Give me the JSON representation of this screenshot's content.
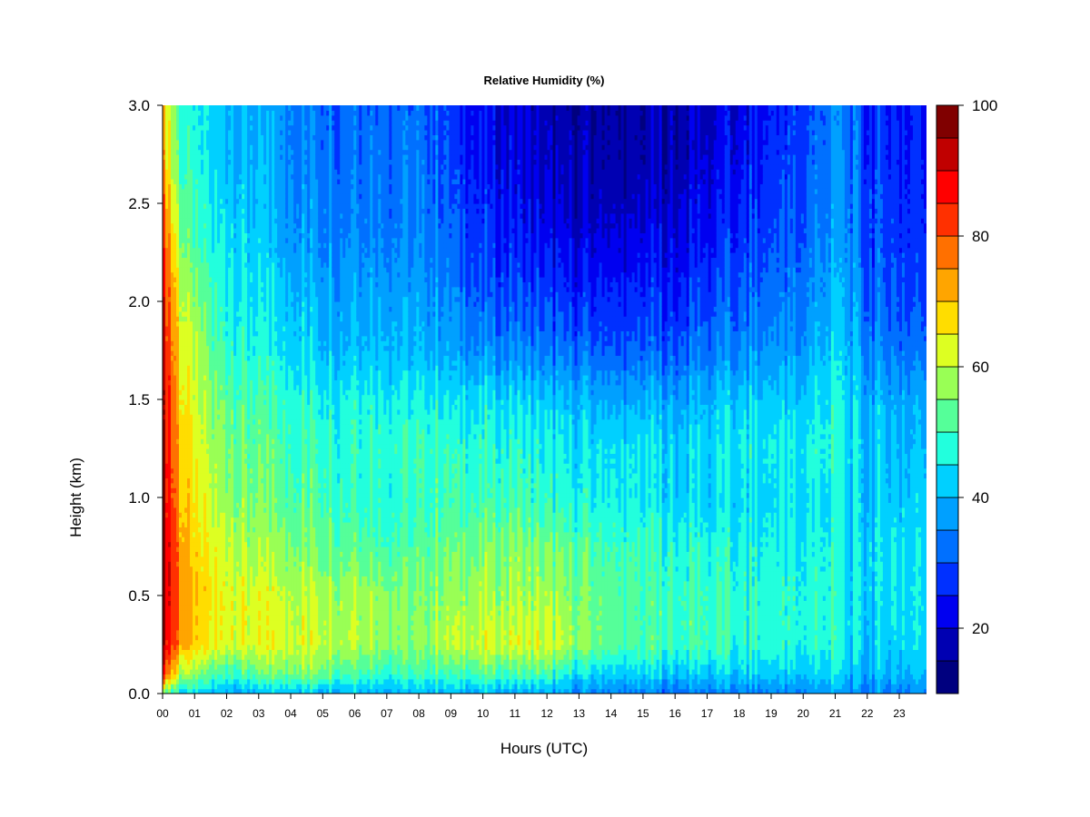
{
  "chart_data": {
    "type": "heatmap",
    "title": "Relative Humidity (%)",
    "xlabel": "Hours (UTC)",
    "ylabel": "Height (km)",
    "xlim": [
      0,
      23.85
    ],
    "ylim": [
      0,
      3.0
    ],
    "x_ticks": [
      "00",
      "01",
      "02",
      "03",
      "04",
      "05",
      "06",
      "07",
      "08",
      "09",
      "10",
      "11",
      "12",
      "13",
      "14",
      "15",
      "16",
      "17",
      "18",
      "19",
      "20",
      "21",
      "22",
      "23"
    ],
    "y_ticks": [
      "0.0",
      "0.5",
      "1.0",
      "1.5",
      "2.0",
      "2.5",
      "3.0"
    ],
    "z_unit": "%",
    "colorbar": {
      "range": [
        10,
        100
      ],
      "tick_labels": [
        "20",
        "40",
        "60",
        "80",
        "100"
      ],
      "tick_values": [
        20,
        40,
        60,
        80,
        100
      ],
      "levels": [
        10,
        15,
        20,
        25,
        30,
        35,
        40,
        45,
        50,
        55,
        60,
        65,
        70,
        75,
        80,
        85,
        90,
        95,
        100
      ],
      "colors": [
        "#00007F",
        "#0000B2",
        "#0000F0",
        "#0030FF",
        "#0070FF",
        "#00A0FF",
        "#00D0FF",
        "#22FFDD",
        "#55FF99",
        "#99FF55",
        "#DDFF22",
        "#FFDD00",
        "#FFA500",
        "#FF7000",
        "#FF3000",
        "#FF0000",
        "#C00000",
        "#800000"
      ]
    },
    "grid": false,
    "heights_km": [
      0.0,
      0.1,
      0.25,
      0.5,
      0.75,
      1.0,
      1.25,
      1.5,
      1.75,
      2.0,
      2.25,
      2.5,
      2.75,
      3.0
    ],
    "hours": [
      0,
      0.5,
      1,
      2,
      3,
      4,
      5,
      6,
      7,
      8,
      9,
      10,
      11,
      12,
      13,
      14,
      15,
      16,
      17,
      18,
      19,
      20,
      21,
      21.5,
      22,
      23,
      23.85
    ],
    "rh_grid": [
      [
        55,
        45,
        42,
        40,
        40,
        42,
        40,
        42,
        40,
        40,
        40,
        40,
        38,
        38,
        35,
        34,
        33,
        33,
        34,
        34,
        34,
        35,
        37,
        34,
        34,
        34,
        35
      ],
      [
        85,
        62,
        55,
        50,
        52,
        55,
        55,
        52,
        50,
        50,
        50,
        52,
        50,
        50,
        44,
        42,
        42,
        42,
        42,
        42,
        42,
        42,
        44,
        40,
        40,
        40,
        40
      ],
      [
        95,
        76,
        66,
        64,
        62,
        62,
        62,
        61,
        58,
        56,
        60,
        62,
        62,
        62,
        56,
        52,
        50,
        50,
        50,
        48,
        48,
        47,
        48,
        44,
        43,
        43,
        44
      ],
      [
        96,
        78,
        68,
        65,
        62,
        60,
        60,
        60,
        58,
        55,
        57,
        58,
        58,
        58,
        55,
        52,
        50,
        50,
        50,
        48,
        48,
        47,
        48,
        44,
        44,
        44,
        44
      ],
      [
        96,
        76,
        66,
        62,
        57,
        56,
        55,
        54,
        52,
        52,
        54,
        55,
        56,
        54,
        52,
        50,
        48,
        48,
        47,
        46,
        46,
        46,
        47,
        43,
        44,
        44,
        44
      ],
      [
        95,
        74,
        64,
        58,
        54,
        52,
        52,
        50,
        49,
        49,
        50,
        50,
        50,
        48,
        46,
        45,
        44,
        43,
        43,
        43,
        44,
        44,
        45,
        43,
        42,
        42,
        42
      ],
      [
        95,
        72,
        62,
        56,
        52,
        50,
        50,
        50,
        50,
        50,
        49,
        48,
        48,
        46,
        44,
        44,
        44,
        43,
        43,
        45,
        45,
        46,
        48,
        44,
        42,
        40,
        40
      ],
      [
        94,
        70,
        60,
        54,
        50,
        48,
        47,
        48,
        47,
        46,
        44,
        44,
        43,
        41,
        40,
        38,
        38,
        38,
        40,
        42,
        42,
        42,
        46,
        42,
        40,
        38,
        38
      ],
      [
        92,
        68,
        58,
        50,
        46,
        44,
        42,
        42,
        42,
        40,
        38,
        36,
        35,
        33,
        32,
        30,
        30,
        31,
        33,
        35,
        36,
        37,
        43,
        40,
        36,
        33,
        32
      ],
      [
        90,
        64,
        55,
        48,
        44,
        41,
        40,
        40,
        40,
        38,
        35,
        31,
        30,
        28,
        26,
        26,
        26,
        26,
        29,
        31,
        33,
        34,
        40,
        38,
        32,
        30,
        28
      ],
      [
        86,
        60,
        50,
        46,
        42,
        38,
        37,
        37,
        36,
        35,
        32,
        28,
        26,
        24,
        22,
        21,
        22,
        23,
        25,
        28,
        30,
        32,
        38,
        36,
        30,
        28,
        26
      ],
      [
        80,
        56,
        48,
        44,
        40,
        36,
        36,
        35,
        35,
        34,
        30,
        26,
        23,
        20,
        18,
        18,
        18,
        20,
        22,
        25,
        28,
        30,
        36,
        34,
        30,
        27,
        25
      ],
      [
        74,
        52,
        46,
        42,
        39,
        35,
        34,
        34,
        34,
        33,
        29,
        24,
        21,
        18,
        17,
        16,
        16,
        18,
        20,
        23,
        26,
        29,
        35,
        33,
        28,
        26,
        24
      ],
      [
        70,
        50,
        45,
        41,
        38,
        35,
        33,
        33,
        33,
        32,
        28,
        23,
        20,
        17,
        15,
        15,
        15,
        17,
        19,
        22,
        25,
        28,
        34,
        32,
        27,
        25,
        24
      ]
    ]
  }
}
